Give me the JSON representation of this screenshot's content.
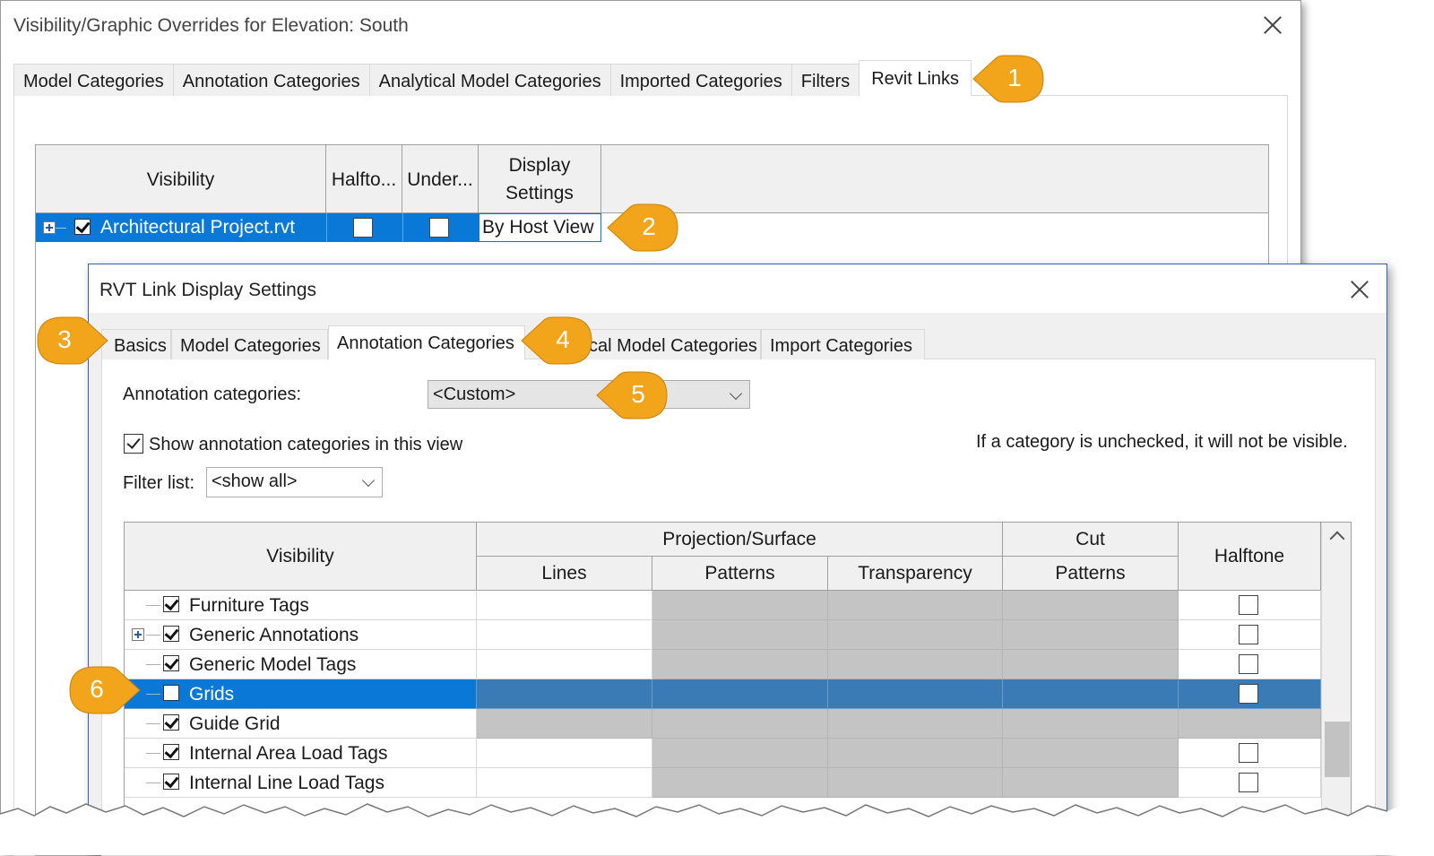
{
  "dialog1": {
    "title": "Visibility/Graphic Overrides for Elevation: South",
    "tabs": [
      "Model Categories",
      "Annotation Categories",
      "Analytical Model Categories",
      "Imported Categories",
      "Filters",
      "Revit Links"
    ],
    "active_tab": "Revit Links",
    "grid": {
      "headers": {
        "visibility": "Visibility",
        "halftone": "Halfto...",
        "underlay": "Under...",
        "display": "Display Settings"
      },
      "row": {
        "name": "Architectural Project.rvt",
        "visible": true,
        "halftone": false,
        "underlay": false,
        "display": "By Host View"
      }
    }
  },
  "dialog2": {
    "title": "RVT Link Display Settings",
    "tabs": [
      "Basics",
      "Model Categories",
      "Annotation Categories",
      "cal Model Categories",
      "Import Categories"
    ],
    "active_tab": "Annotation Categories",
    "annotation_label": "Annotation categories:",
    "annotation_value": "<Custom>",
    "show_checkbox_label": "Show annotation categories in this view",
    "show_checked": true,
    "hint": "If a category is unchecked, it will not be visible.",
    "filter_label": "Filter list:",
    "filter_value": "<show all>",
    "grid": {
      "headers": {
        "visibility": "Visibility",
        "projection": "Projection/Surface",
        "lines": "Lines",
        "patterns": "Patterns",
        "transparency": "Transparency",
        "cut": "Cut",
        "cut_patterns": "Patterns",
        "halftone": "Halftone"
      },
      "rows": [
        {
          "name": "Furniture Tags",
          "checked": true,
          "expandable": false,
          "halftone": false
        },
        {
          "name": "Generic Annotations",
          "checked": true,
          "expandable": true,
          "halftone": false
        },
        {
          "name": "Generic Model Tags",
          "checked": true,
          "expandable": false,
          "halftone": false
        },
        {
          "name": "Grids",
          "checked": false,
          "expandable": false,
          "halftone": false,
          "selected": true
        },
        {
          "name": "Guide Grid",
          "checked": true,
          "expandable": false,
          "halftone": null
        },
        {
          "name": "Internal Area Load Tags",
          "checked": true,
          "expandable": false,
          "halftone": false
        },
        {
          "name": "Internal Line Load Tags",
          "checked": true,
          "expandable": false,
          "halftone": false
        }
      ]
    }
  },
  "callouts": [
    "1",
    "2",
    "3",
    "4",
    "5",
    "6"
  ],
  "colors": {
    "callout": "#f2a51a",
    "selection": "#0a78d7",
    "disabled_cell": "#c4c4c4",
    "accent_border": "#2f62b8"
  }
}
